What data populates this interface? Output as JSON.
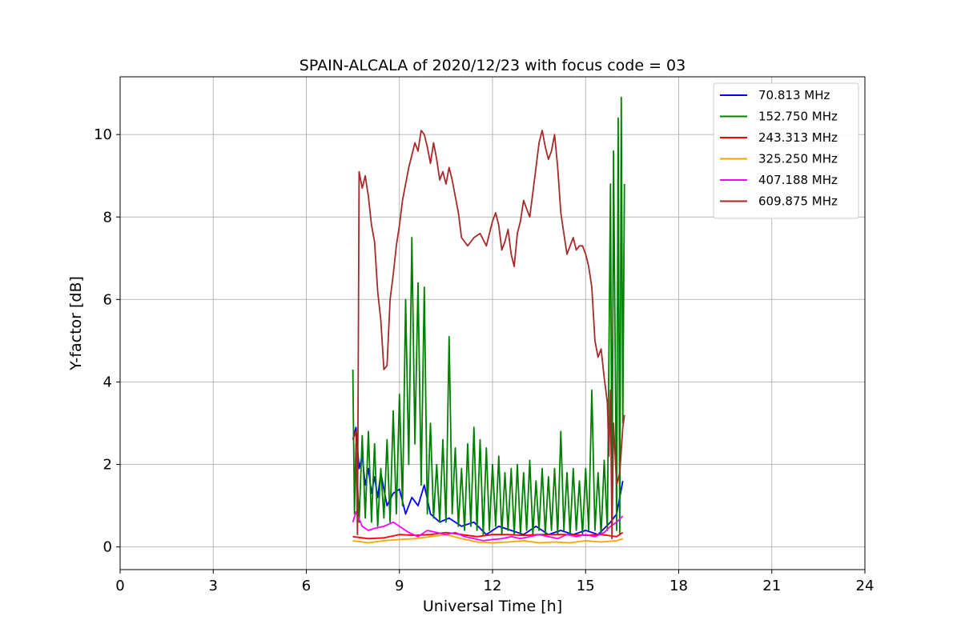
{
  "chart_data": {
    "type": "line",
    "title": "SPAIN-ALCALA of 2020/12/23 with focus code = 03",
    "xlabel": "Universal Time [h]",
    "ylabel": "Y-factor [dB]",
    "xlim": [
      0,
      24
    ],
    "ylim": [
      -0.55,
      11.4
    ],
    "xticks": [
      0,
      3,
      6,
      9,
      12,
      15,
      18,
      21,
      24
    ],
    "yticks": [
      0,
      2,
      4,
      6,
      8,
      10
    ],
    "grid": true,
    "legend_position": "top-right",
    "series": [
      {
        "name": " 70.813 MHz",
        "color": "#0000ff",
        "x": [
          7.5,
          7.6,
          7.7,
          7.8,
          7.9,
          8.0,
          8.1,
          8.2,
          8.3,
          8.4,
          8.6,
          8.8,
          9.0,
          9.2,
          9.4,
          9.6,
          9.8,
          10.0,
          10.3,
          10.6,
          11.0,
          11.4,
          11.8,
          12.2,
          12.6,
          13.0,
          13.4,
          13.8,
          14.2,
          14.6,
          15.0,
          15.4,
          15.8,
          16.0,
          16.2
        ],
        "y": [
          2.6,
          2.9,
          1.9,
          2.2,
          1.5,
          1.9,
          1.3,
          1.7,
          1.2,
          1.8,
          1.0,
          1.3,
          1.4,
          0.8,
          1.2,
          1.0,
          1.5,
          0.8,
          0.6,
          0.7,
          0.5,
          0.6,
          0.3,
          0.5,
          0.4,
          0.3,
          0.5,
          0.3,
          0.4,
          0.3,
          0.4,
          0.3,
          0.6,
          0.8,
          1.6
        ]
      },
      {
        "name": "152.750 MHz",
        "color": "#008000",
        "x": [
          7.5,
          7.55,
          7.6,
          7.7,
          7.8,
          7.9,
          8.0,
          8.1,
          8.2,
          8.3,
          8.4,
          8.5,
          8.6,
          8.7,
          8.8,
          8.9,
          9.0,
          9.1,
          9.2,
          9.3,
          9.4,
          9.5,
          9.6,
          9.7,
          9.8,
          9.9,
          10.0,
          10.1,
          10.2,
          10.3,
          10.4,
          10.5,
          10.6,
          10.7,
          10.8,
          10.9,
          11.0,
          11.1,
          11.2,
          11.3,
          11.4,
          11.5,
          11.6,
          11.7,
          11.8,
          11.9,
          12.0,
          12.1,
          12.2,
          12.3,
          12.4,
          12.5,
          12.6,
          12.7,
          12.8,
          12.9,
          13.0,
          13.1,
          13.2,
          13.3,
          13.4,
          13.5,
          13.6,
          13.7,
          13.8,
          13.9,
          14.0,
          14.1,
          14.2,
          14.3,
          14.4,
          14.5,
          14.6,
          14.7,
          14.8,
          14.9,
          15.0,
          15.1,
          15.2,
          15.3,
          15.4,
          15.5,
          15.6,
          15.7,
          15.8,
          15.85,
          15.9,
          16.0,
          16.05,
          16.1,
          16.15,
          16.2,
          16.25
        ],
        "y": [
          4.3,
          0.8,
          2.5,
          0.6,
          2.7,
          0.7,
          2.8,
          0.6,
          2.5,
          0.5,
          1.9,
          0.7,
          2.6,
          0.6,
          3.3,
          0.8,
          3.7,
          1.0,
          6.0,
          2.0,
          7.5,
          2.5,
          6.4,
          1.5,
          6.3,
          0.8,
          3.0,
          0.7,
          2.0,
          0.6,
          2.6,
          0.6,
          5.1,
          0.8,
          2.4,
          0.5,
          1.9,
          0.4,
          2.5,
          0.5,
          2.9,
          0.4,
          2.6,
          0.3,
          2.4,
          0.4,
          2.0,
          0.5,
          2.2,
          0.3,
          1.8,
          0.4,
          1.9,
          0.3,
          2.0,
          0.3,
          1.8,
          0.4,
          2.1,
          0.3,
          1.6,
          0.4,
          1.9,
          0.3,
          1.7,
          0.4,
          1.9,
          0.3,
          2.8,
          0.4,
          1.8,
          0.3,
          1.9,
          0.4,
          1.6,
          0.3,
          1.9,
          0.4,
          3.8,
          0.4,
          1.8,
          0.3,
          2.1,
          0.4,
          8.8,
          0.5,
          9.6,
          0.4,
          10.4,
          0.3,
          10.9,
          3.0,
          8.8
        ]
      },
      {
        "name": "243.313 MHz",
        "color": "#ff0000",
        "x": [
          7.5,
          8.0,
          8.5,
          9.0,
          9.5,
          10.0,
          10.5,
          11.0,
          11.5,
          12.0,
          12.5,
          13.0,
          13.5,
          14.0,
          14.5,
          15.0,
          15.5,
          16.0,
          16.2
        ],
        "y": [
          0.25,
          0.2,
          0.22,
          0.3,
          0.28,
          0.3,
          0.35,
          0.3,
          0.25,
          0.3,
          0.3,
          0.28,
          0.3,
          0.3,
          0.3,
          0.28,
          0.3,
          0.25,
          0.35
        ]
      },
      {
        "name": "325.250 MHz",
        "color": "#ffa500",
        "x": [
          7.5,
          8.0,
          8.5,
          9.0,
          9.5,
          10.0,
          10.5,
          11.0,
          11.5,
          12.0,
          12.5,
          13.0,
          13.5,
          14.0,
          14.5,
          15.0,
          15.5,
          16.0,
          16.2
        ],
        "y": [
          0.15,
          0.1,
          0.15,
          0.18,
          0.2,
          0.25,
          0.3,
          0.2,
          0.12,
          0.1,
          0.12,
          0.15,
          0.1,
          0.12,
          0.1,
          0.15,
          0.12,
          0.15,
          0.2
        ]
      },
      {
        "name": "407.188 MHz",
        "color": "#ff00ff",
        "x": [
          7.5,
          7.6,
          7.8,
          8.0,
          8.2,
          8.5,
          8.8,
          9.0,
          9.3,
          9.6,
          9.9,
          10.2,
          10.5,
          10.8,
          11.1,
          11.4,
          11.7,
          12.0,
          12.3,
          12.6,
          12.9,
          13.2,
          13.5,
          13.8,
          14.1,
          14.4,
          14.7,
          15.0,
          15.3,
          15.6,
          15.8,
          16.0,
          16.2
        ],
        "y": [
          0.6,
          0.85,
          0.5,
          0.4,
          0.45,
          0.5,
          0.6,
          0.5,
          0.35,
          0.25,
          0.4,
          0.35,
          0.3,
          0.35,
          0.25,
          0.2,
          0.15,
          0.18,
          0.2,
          0.25,
          0.2,
          0.25,
          0.3,
          0.25,
          0.2,
          0.3,
          0.25,
          0.3,
          0.25,
          0.35,
          0.5,
          0.6,
          0.75
        ]
      },
      {
        "name": "609.875 MHz",
        "color": "#a52a2a",
        "x": [
          7.5,
          7.6,
          7.65,
          7.7,
          7.8,
          7.9,
          8.0,
          8.1,
          8.2,
          8.3,
          8.4,
          8.5,
          8.6,
          8.7,
          8.8,
          8.9,
          9.0,
          9.1,
          9.2,
          9.3,
          9.4,
          9.5,
          9.6,
          9.7,
          9.8,
          9.9,
          10.0,
          10.1,
          10.2,
          10.3,
          10.4,
          10.5,
          10.6,
          10.7,
          10.8,
          10.9,
          11.0,
          11.2,
          11.4,
          11.6,
          11.8,
          12.0,
          12.1,
          12.2,
          12.3,
          12.4,
          12.5,
          12.6,
          12.7,
          12.8,
          12.9,
          13.0,
          13.1,
          13.2,
          13.3,
          13.4,
          13.5,
          13.6,
          13.7,
          13.8,
          13.9,
          14.0,
          14.1,
          14.2,
          14.3,
          14.4,
          14.5,
          14.6,
          14.7,
          14.8,
          14.9,
          15.0,
          15.1,
          15.2,
          15.3,
          15.4,
          15.5,
          15.6,
          15.7,
          15.75,
          15.8,
          15.85,
          15.9,
          16.0,
          16.1,
          16.2,
          16.25
        ],
        "y": [
          2.6,
          2.8,
          0.3,
          9.1,
          8.7,
          9.0,
          8.5,
          7.8,
          7.4,
          6.2,
          5.5,
          4.3,
          4.4,
          6.0,
          6.6,
          7.3,
          7.8,
          8.4,
          8.8,
          9.2,
          9.5,
          9.8,
          9.6,
          10.1,
          10.0,
          9.7,
          9.3,
          9.8,
          9.4,
          8.9,
          9.1,
          8.8,
          9.2,
          8.9,
          8.5,
          8.1,
          7.5,
          7.3,
          7.5,
          7.6,
          7.3,
          7.9,
          8.1,
          7.8,
          7.2,
          7.4,
          7.7,
          7.1,
          6.8,
          7.6,
          7.9,
          8.4,
          8.2,
          8.0,
          8.6,
          9.2,
          9.8,
          10.1,
          9.7,
          9.4,
          9.6,
          10.0,
          9.2,
          8.1,
          7.6,
          7.1,
          7.3,
          7.5,
          7.2,
          7.3,
          7.3,
          7.1,
          6.8,
          6.3,
          5.0,
          4.6,
          4.8,
          4.1,
          3.5,
          2.2,
          3.8,
          0.2,
          3.0,
          1.5,
          1.8,
          2.9,
          3.2
        ]
      }
    ]
  }
}
